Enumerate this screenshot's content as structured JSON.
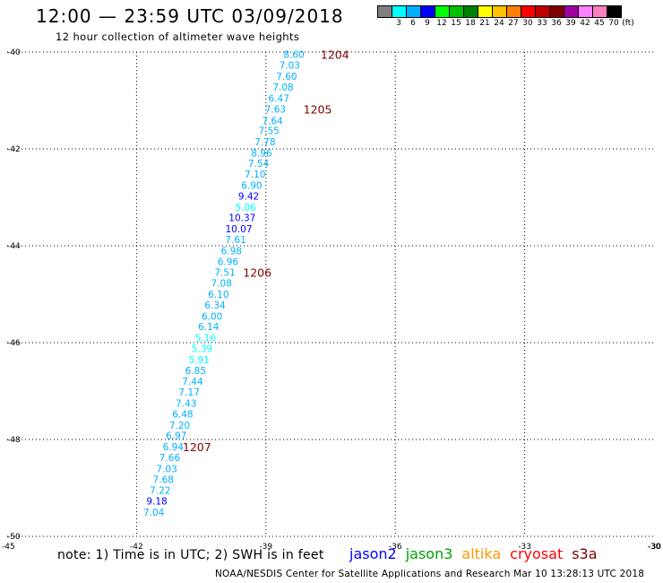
{
  "title": "12:00 — 23:59 UTC 03/09/2018",
  "subtitle": "12 hour collection of altimeter wave heights",
  "colorbar": {
    "colors": [
      "#808080",
      "#00ffff",
      "#00b0ff",
      "#0000ff",
      "#00ff00",
      "#00c000",
      "#008000",
      "#ffff00",
      "#ffc000",
      "#ff8000",
      "#ff0000",
      "#c00000",
      "#800000",
      "#a000a0",
      "#ff80ff",
      "#ff80c0",
      "#000000"
    ],
    "labels": [
      "",
      "3",
      "6",
      "9",
      "12",
      "15",
      "18",
      "21",
      "24",
      "27",
      "30",
      "33",
      "36",
      "39",
      "42",
      "45",
      "70",
      "(ft)"
    ]
  },
  "chart_data": {
    "type": "scatter",
    "x_ticks": [
      -42,
      -39,
      -36,
      -33,
      -30
    ],
    "x_tick_labels": [
      "-42",
      "-39",
      "-36",
      "-33",
      "-30"
    ],
    "x_range": [
      -45,
      -30
    ],
    "y_ticks": [
      -40,
      -42,
      -44,
      -46,
      -48,
      -50
    ],
    "y_tick_labels": [
      "-40",
      "-42",
      "-44",
      "-46",
      "-48",
      "-50"
    ],
    "y_range": [
      -50,
      -40
    ],
    "corner_labels": {
      "bottom_left": "-45",
      "bottom_right": "-30"
    },
    "points": [
      {
        "lon": -38.35,
        "lat": -40.05,
        "value": "8.60",
        "color": "#00b0ff"
      },
      {
        "lon": -38.45,
        "lat": -40.27,
        "value": "7.03",
        "color": "#00b0ff"
      },
      {
        "lon": -38.52,
        "lat": -40.5,
        "value": "7.60",
        "color": "#00b0ff"
      },
      {
        "lon": -38.6,
        "lat": -40.72,
        "value": "7.08",
        "color": "#00b0ff"
      },
      {
        "lon": -38.7,
        "lat": -40.95,
        "value": "6.47",
        "color": "#00b0ff"
      },
      {
        "lon": -38.78,
        "lat": -41.18,
        "value": "7.63",
        "color": "#00b0ff"
      },
      {
        "lon": -38.85,
        "lat": -41.42,
        "value": "7.64",
        "color": "#00b0ff"
      },
      {
        "lon": -38.93,
        "lat": -41.62,
        "value": "7.55",
        "color": "#00b0ff"
      },
      {
        "lon": -39.02,
        "lat": -41.85,
        "value": "7.78",
        "color": "#00b0ff"
      },
      {
        "lon": -39.1,
        "lat": -42.08,
        "value": "8.96",
        "color": "#00b0ff"
      },
      {
        "lon": -39.17,
        "lat": -42.3,
        "value": "7.54",
        "color": "#00b0ff"
      },
      {
        "lon": -39.25,
        "lat": -42.52,
        "value": "7.10",
        "color": "#00b0ff"
      },
      {
        "lon": -39.33,
        "lat": -42.75,
        "value": "6.90",
        "color": "#00b0ff"
      },
      {
        "lon": -39.4,
        "lat": -42.97,
        "value": "9.42",
        "color": "#0000ff"
      },
      {
        "lon": -39.47,
        "lat": -43.2,
        "value": "5.06",
        "color": "#00ffff"
      },
      {
        "lon": -39.55,
        "lat": -43.42,
        "value": "10.37",
        "color": "#0000ff"
      },
      {
        "lon": -39.63,
        "lat": -43.65,
        "value": "10.07",
        "color": "#0000ff"
      },
      {
        "lon": -39.7,
        "lat": -43.87,
        "value": "7.61",
        "color": "#00b0ff"
      },
      {
        "lon": -39.8,
        "lat": -44.1,
        "value": "6.98",
        "color": "#00b0ff"
      },
      {
        "lon": -39.88,
        "lat": -44.32,
        "value": "6.96",
        "color": "#00b0ff"
      },
      {
        "lon": -39.95,
        "lat": -44.55,
        "value": "7.51",
        "color": "#00b0ff"
      },
      {
        "lon": -40.03,
        "lat": -44.77,
        "value": "7.08",
        "color": "#00b0ff"
      },
      {
        "lon": -40.1,
        "lat": -45.0,
        "value": "6.10",
        "color": "#00b0ff"
      },
      {
        "lon": -40.18,
        "lat": -45.22,
        "value": "6.34",
        "color": "#00b0ff"
      },
      {
        "lon": -40.25,
        "lat": -45.45,
        "value": "6.00",
        "color": "#00b0ff"
      },
      {
        "lon": -40.33,
        "lat": -45.67,
        "value": "6.14",
        "color": "#00b0ff"
      },
      {
        "lon": -40.4,
        "lat": -45.9,
        "value": "5.16",
        "color": "#00ffff"
      },
      {
        "lon": -40.48,
        "lat": -46.12,
        "value": "5.39",
        "color": "#00ffff"
      },
      {
        "lon": -40.55,
        "lat": -46.35,
        "value": "5.91",
        "color": "#00ffff"
      },
      {
        "lon": -40.63,
        "lat": -46.57,
        "value": "6.85",
        "color": "#00b0ff"
      },
      {
        "lon": -40.7,
        "lat": -46.8,
        "value": "7.44",
        "color": "#00b0ff"
      },
      {
        "lon": -40.78,
        "lat": -47.02,
        "value": "7.17",
        "color": "#00b0ff"
      },
      {
        "lon": -40.85,
        "lat": -47.25,
        "value": "7.43",
        "color": "#00b0ff"
      },
      {
        "lon": -40.93,
        "lat": -47.47,
        "value": "6.48",
        "color": "#00b0ff"
      },
      {
        "lon": -41.0,
        "lat": -47.7,
        "value": "7.20",
        "color": "#00b0ff"
      },
      {
        "lon": -41.08,
        "lat": -47.92,
        "value": "6.97",
        "color": "#00b0ff"
      },
      {
        "lon": -41.15,
        "lat": -48.15,
        "value": "6.94",
        "color": "#00b0ff"
      },
      {
        "lon": -41.23,
        "lat": -48.37,
        "value": "7.66",
        "color": "#00b0ff"
      },
      {
        "lon": -41.3,
        "lat": -48.6,
        "value": "7.03",
        "color": "#00b0ff"
      },
      {
        "lon": -41.38,
        "lat": -48.82,
        "value": "7.68",
        "color": "#00b0ff"
      },
      {
        "lon": -41.45,
        "lat": -49.05,
        "value": "7.22",
        "color": "#00b0ff"
      },
      {
        "lon": -41.53,
        "lat": -49.27,
        "value": "9.18",
        "color": "#0000ff"
      },
      {
        "lon": -41.6,
        "lat": -49.5,
        "value": "7.04",
        "color": "#00b0ff"
      }
    ],
    "time_labels": [
      {
        "lon": -37.4,
        "lat": -40.05,
        "text": "1204"
      },
      {
        "lon": -37.8,
        "lat": -41.18,
        "text": "1205"
      },
      {
        "lon": -39.2,
        "lat": -44.55,
        "text": "1206"
      },
      {
        "lon": -40.6,
        "lat": -48.15,
        "text": "1207"
      }
    ],
    "time_label_color": "#800000"
  },
  "note": "note: 1) Time is in UTC; 2) SWH is in feet",
  "legend": [
    {
      "name": "jason2",
      "color": "#0000ff"
    },
    {
      "name": "jason3",
      "color": "#00a000"
    },
    {
      "name": "altika",
      "color": "#ff9900"
    },
    {
      "name": "cryosat",
      "color": "#ff0000"
    },
    {
      "name": "s3a",
      "color": "#800000"
    }
  ],
  "footer": "NOAA/NESDIS Center for Satellite Applications and Research    Mar 10 13:28:13 UTC 2018"
}
